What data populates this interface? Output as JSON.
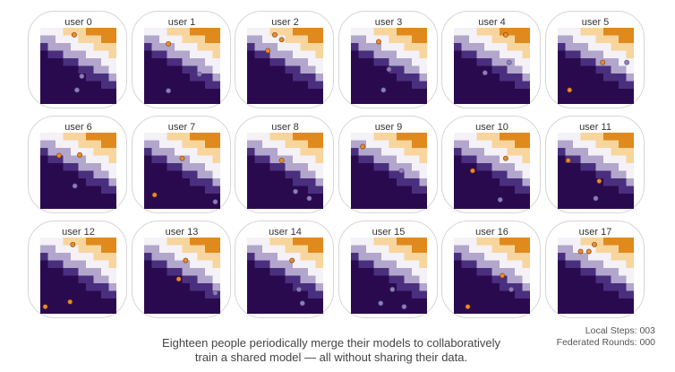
{
  "panels": [
    {
      "label": "user 0",
      "points": [
        {
          "x": 0.44,
          "y": 0.95,
          "c": "orange"
        },
        {
          "x": 0.55,
          "y": 0.35,
          "c": "purple"
        },
        {
          "x": 0.48,
          "y": 0.15,
          "c": "purple"
        }
      ]
    },
    {
      "label": "user 1",
      "points": [
        {
          "x": 0.3,
          "y": 0.82,
          "c": "orange"
        },
        {
          "x": 0.75,
          "y": 0.38,
          "c": "purple"
        },
        {
          "x": 0.3,
          "y": 0.14,
          "c": "purple"
        }
      ]
    },
    {
      "label": "user 2",
      "points": [
        {
          "x": 0.35,
          "y": 0.95,
          "c": "orange"
        },
        {
          "x": 0.45,
          "y": 0.88,
          "c": "orange"
        },
        {
          "x": 0.25,
          "y": 0.72,
          "c": "orange"
        }
      ]
    },
    {
      "label": "user 3",
      "points": [
        {
          "x": 0.35,
          "y": 0.85,
          "c": "orange"
        },
        {
          "x": 0.5,
          "y": 0.45,
          "c": "purple"
        },
        {
          "x": 0.42,
          "y": 0.15,
          "c": "purple"
        }
      ]
    },
    {
      "label": "user 4",
      "points": [
        {
          "x": 0.7,
          "y": 0.95,
          "c": "orange"
        },
        {
          "x": 0.75,
          "y": 0.55,
          "c": "purple"
        },
        {
          "x": 0.4,
          "y": 0.4,
          "c": "purple"
        }
      ]
    },
    {
      "label": "user 5",
      "points": [
        {
          "x": 0.6,
          "y": 0.55,
          "c": "orange"
        },
        {
          "x": 0.95,
          "y": 0.55,
          "c": "purple"
        },
        {
          "x": 0.12,
          "y": 0.15,
          "c": "orange"
        }
      ]
    },
    {
      "label": "user 6",
      "points": [
        {
          "x": 0.22,
          "y": 0.72,
          "c": "orange"
        },
        {
          "x": 0.52,
          "y": 0.73,
          "c": "orange"
        },
        {
          "x": 0.45,
          "y": 0.28,
          "c": "purple"
        }
      ]
    },
    {
      "label": "user 7",
      "points": [
        {
          "x": 0.5,
          "y": 0.68,
          "c": "orange"
        },
        {
          "x": 0.1,
          "y": 0.15,
          "c": "orange"
        },
        {
          "x": 0.98,
          "y": 0.05,
          "c": "purple"
        }
      ]
    },
    {
      "label": "user 8",
      "points": [
        {
          "x": 0.45,
          "y": 0.65,
          "c": "orange"
        },
        {
          "x": 0.65,
          "y": 0.2,
          "c": "purple"
        },
        {
          "x": 0.85,
          "y": 0.1,
          "c": "purple"
        }
      ]
    },
    {
      "label": "user 9",
      "points": [
        {
          "x": 0.12,
          "y": 0.85,
          "c": "orange"
        },
        {
          "x": 0.68,
          "y": 0.5,
          "c": "purple"
        }
      ]
    },
    {
      "label": "user 10",
      "points": [
        {
          "x": 0.7,
          "y": 0.68,
          "c": "orange"
        },
        {
          "x": 0.22,
          "y": 0.5,
          "c": "orange"
        },
        {
          "x": 0.62,
          "y": 0.08,
          "c": "purple"
        }
      ]
    },
    {
      "label": "user 11",
      "points": [
        {
          "x": 0.1,
          "y": 0.65,
          "c": "orange"
        },
        {
          "x": 0.55,
          "y": 0.35,
          "c": "orange"
        },
        {
          "x": 0.5,
          "y": 0.1,
          "c": "purple"
        }
      ]
    },
    {
      "label": "user 12",
      "points": [
        {
          "x": 0.42,
          "y": 0.95,
          "c": "orange"
        },
        {
          "x": 0.38,
          "y": 0.12,
          "c": "orange"
        },
        {
          "x": 0.02,
          "y": 0.05,
          "c": "orange"
        }
      ]
    },
    {
      "label": "user 13",
      "points": [
        {
          "x": 0.55,
          "y": 0.72,
          "c": "orange"
        },
        {
          "x": 0.45,
          "y": 0.45,
          "c": "orange"
        },
        {
          "x": 0.98,
          "y": 0.25,
          "c": "purple"
        }
      ]
    },
    {
      "label": "user 14",
      "points": [
        {
          "x": 0.6,
          "y": 0.72,
          "c": "orange"
        },
        {
          "x": 0.7,
          "y": 0.3,
          "c": "purple"
        },
        {
          "x": 0.75,
          "y": 0.1,
          "c": "purple"
        }
      ]
    },
    {
      "label": "user 15",
      "points": [
        {
          "x": 0.55,
          "y": 0.3,
          "c": "purple"
        },
        {
          "x": 0.38,
          "y": 0.1,
          "c": "purple"
        },
        {
          "x": 0.72,
          "y": 0.05,
          "c": "purple"
        }
      ]
    },
    {
      "label": "user 16",
      "points": [
        {
          "x": 0.65,
          "y": 0.5,
          "c": "orange"
        },
        {
          "x": 0.78,
          "y": 0.3,
          "c": "purple"
        },
        {
          "x": 0.15,
          "y": 0.05,
          "c": "orange"
        }
      ]
    },
    {
      "label": "user 17",
      "points": [
        {
          "x": 0.28,
          "y": 0.85,
          "c": "orange"
        },
        {
          "x": 0.4,
          "y": 0.85,
          "c": "orange"
        },
        {
          "x": 0.48,
          "y": 0.95,
          "c": "orange"
        }
      ]
    }
  ],
  "colors": {
    "orange_dark": "#a64a07",
    "orange_mid": "#e08a1e",
    "orange_light": "#f7d59c",
    "boundary": "#f4f1f7",
    "purple_light": "#b2a6cc",
    "purple_mid": "#4a2f7e",
    "purple_dark": "#2a0a4f",
    "point_orange": "#e88c2a",
    "point_purple": "#8d7fb8"
  },
  "status": {
    "local_steps": "Local Steps: 003",
    "federated_rounds": "Federated Rounds: 000"
  },
  "caption": {
    "line1": "Eighteen people periodically merge their models to collaboratively",
    "line2": "train a shared model — all without sharing their data."
  }
}
